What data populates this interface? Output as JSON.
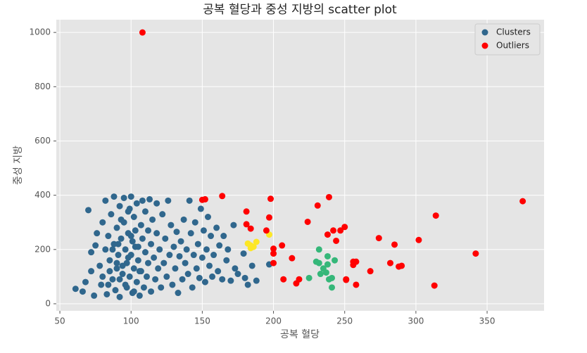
{
  "chart_data": {
    "type": "scatter",
    "title": "공복 혈당과 중성 지방의 scatter plot",
    "x_label": "공복 혈당",
    "y_label": "중성 지방",
    "xlim": [
      47.5,
      390
    ],
    "ylim": [
      -26,
      1047
    ],
    "xticks": [
      50,
      100,
      150,
      200,
      250,
      300,
      350
    ],
    "yticks": [
      0,
      200,
      400,
      600,
      800,
      1000
    ],
    "grid": true,
    "legend_position": "upper-right",
    "series": [
      {
        "name": "Clusters",
        "color": "#30678d",
        "groups": [
          {
            "color": "#30678d",
            "x": [
              61,
              66,
              68,
              70,
              72,
              72,
              74,
              75,
              76,
              78,
              79,
              80,
              80,
              82,
              82,
              83,
              84,
              85,
              86,
              87,
              88,
              88,
              89,
              90,
              90,
              91,
              92,
              92,
              93,
              94,
              95,
              95,
              96,
              96,
              97,
              98,
              98,
              99,
              100,
              100,
              101,
              101,
              102,
              102,
              103,
              104,
              104,
              105,
              105,
              106,
              107,
              107,
              108,
              108,
              109,
              110,
              110,
              111,
              112,
              112,
              113,
              114,
              114,
              115,
              116,
              117,
              118,
              118,
              119,
              120,
              121,
              122,
              123,
              124,
              125,
              126,
              127,
              128,
              129,
              130,
              131,
              132,
              133,
              134,
              135,
              136,
              137,
              138,
              139,
              140,
              141,
              142,
              143,
              144,
              145,
              146,
              147,
              148,
              149,
              150,
              151,
              152,
              153,
              154,
              155,
              156,
              157,
              158,
              160,
              161,
              162,
              164,
              165,
              167,
              168,
              170,
              172,
              173,
              175,
              179,
              180,
              182,
              185,
              188,
              197,
              90,
              85,
              92,
              97,
              103,
              98,
              94,
              100,
              87,
              106,
              93,
              91,
              99,
              84,
              102
            ],
            "y": [
              55,
              45,
              80,
              345,
              120,
              190,
              30,
              215,
              260,
              140,
              70,
              300,
              100,
              380,
              200,
              35,
              250,
              160,
              330,
              90,
              395,
              220,
              50,
              280,
              130,
              180,
              360,
              25,
              240,
              110,
              390,
              300,
              200,
              70,
              150,
              340,
              260,
              100,
              395,
              180,
              230,
              40,
              320,
              130,
              270,
              80,
              370,
              210,
              160,
              30,
              290,
              120,
              380,
              240,
              60,
              190,
              340,
              100,
              270,
              150,
              385,
              220,
              45,
              310,
              170,
              90,
              260,
              370,
              130,
              200,
              60,
              330,
              150,
              240,
              100,
              380,
              180,
              290,
              70,
              210,
              130,
              265,
              40,
              175,
              230,
              90,
              310,
              150,
              200,
              110,
              380,
              260,
              60,
              180,
              300,
              130,
              220,
              95,
              350,
              170,
              270,
              80,
              200,
              320,
              140,
              250,
              100,
              180,
              280,
              120,
              215,
              90,
              250,
              160,
              200,
              85,
              290,
              130,
              110,
              185,
              95,
              70,
              140,
              85,
              145,
              150,
              120,
              90,
              60,
              210,
              170,
              140,
              250,
              200,
              120,
              310,
              220,
              350,
              70,
              45
            ]
          },
          {
            "color": "#fde725",
            "x": [
              182,
              184,
              186,
              188,
              197,
              184
            ],
            "y": [
              222,
              205,
              210,
              228,
              255,
              215
            ]
          },
          {
            "color": "#35b779",
            "x": [
              225,
              230,
              232,
              232,
              235,
              233,
              238,
              238,
              239,
              241,
              241,
              243,
              237
            ],
            "y": [
              95,
              155,
              150,
              200,
              130,
              110,
              175,
              145,
              90,
              95,
              60,
              160,
              115
            ]
          }
        ]
      },
      {
        "name": "Outliers",
        "color": "#ff0000",
        "x": [
          108,
          150,
          152,
          164,
          198,
          239,
          181,
          197,
          181,
          184,
          195,
          224,
          231,
          238,
          242,
          247,
          250,
          244,
          200,
          200,
          200,
          206,
          213,
          207,
          218,
          216,
          251,
          251,
          256,
          256,
          258,
          258,
          268,
          274,
          282,
          285,
          288,
          290,
          302,
          313,
          314,
          342,
          375
        ],
        "y": [
          1000,
          383,
          385,
          397,
          387,
          393,
          340,
          318,
          293,
          277,
          270,
          302,
          362,
          255,
          270,
          270,
          283,
          232,
          203,
          185,
          150,
          215,
          168,
          90,
          90,
          75,
          90,
          88,
          155,
          143,
          155,
          70,
          120,
          242,
          150,
          218,
          137,
          140,
          235,
          67,
          325,
          185,
          378
        ]
      }
    ]
  }
}
